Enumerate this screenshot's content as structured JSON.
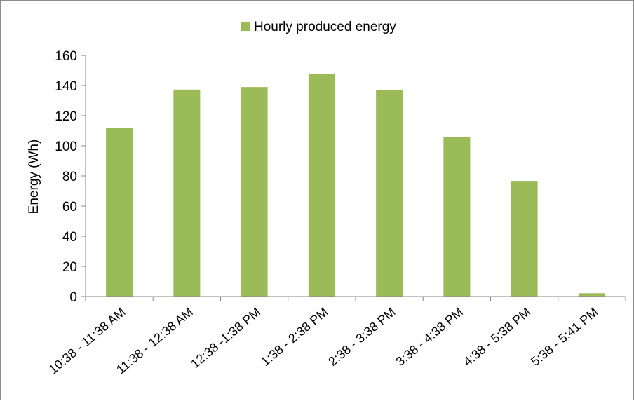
{
  "chart_data": {
    "type": "bar",
    "title": "",
    "xlabel": "",
    "ylabel": "Energy (Wh)",
    "ylim": [
      0,
      160
    ],
    "yticks": [
      0,
      20,
      40,
      60,
      80,
      100,
      120,
      140,
      160
    ],
    "grid": false,
    "legend_position": "top-center",
    "categories": [
      "10:38 - 11:38 AM",
      "11:38 - 12:38 AM",
      "12:38 -1:38 PM",
      "1:38 - 2:38 PM",
      "2:38 - 3:38 PM",
      "3:38 - 4:38 PM",
      "4:38 - 5:38 PM",
      "5:38 - 5:41 PM"
    ],
    "series": [
      {
        "name": "Hourly produced energy",
        "color": "#9bbb59",
        "values": [
          111.7,
          137.3,
          139.0,
          147.6,
          137.0,
          106.0,
          76.7,
          2.2
        ]
      }
    ]
  }
}
